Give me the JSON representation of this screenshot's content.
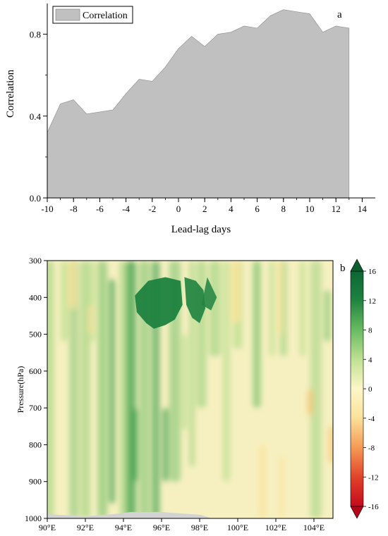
{
  "chart_data": [
    {
      "type": "area",
      "panel_label": "a",
      "xlabel": "Lead-lag days",
      "ylabel": "Correlation",
      "legend": {
        "entries": [
          "Correlation"
        ],
        "placement": "top-left",
        "color": "#c0c0c0"
      },
      "xlim": [
        -10,
        15
      ],
      "ylim": [
        0,
        0.95
      ],
      "x_ticks": [
        -10,
        -8,
        -6,
        -4,
        -2,
        0,
        2,
        4,
        6,
        8,
        10,
        12,
        14
      ],
      "x_tick_labels": [
        "-10",
        "-8",
        "-6",
        "-4",
        "-2",
        "0",
        "2",
        "4",
        "6",
        "8",
        "10",
        "12",
        "14"
      ],
      "y_ticks": [
        0.0,
        0.4,
        0.8
      ],
      "y_tick_labels": [
        "0.0",
        "0.4",
        "0.8"
      ],
      "grid": false,
      "fill_color": "#c0c0c0",
      "series": [
        {
          "name": "Correlation",
          "x": [
            -10,
            -9,
            -8,
            -7,
            -6,
            -5,
            -4,
            -3,
            -2,
            -1,
            0,
            1,
            2,
            3,
            4,
            5,
            6,
            7,
            8,
            9,
            10,
            11,
            12,
            13
          ],
          "values": [
            0.32,
            0.46,
            0.48,
            0.41,
            0.42,
            0.43,
            0.51,
            0.58,
            0.57,
            0.64,
            0.73,
            0.79,
            0.74,
            0.8,
            0.81,
            0.84,
            0.83,
            0.89,
            0.92,
            0.91,
            0.9,
            0.81,
            0.84,
            0.83
          ]
        }
      ]
    },
    {
      "type": "heatmap",
      "panel_label": "b",
      "xlabel": "",
      "ylabel": "Pressure(hPa)",
      "xlim": [
        90,
        105
      ],
      "ylim": [
        1000,
        300
      ],
      "x_tick_labels": [
        "90°E",
        "92°E",
        "94°E",
        "96°E",
        "98°E",
        "100°E",
        "102°E",
        "104°E"
      ],
      "x_ticks": [
        90,
        92,
        94,
        96,
        98,
        100,
        102,
        104
      ],
      "y_ticks": [
        300,
        400,
        500,
        600,
        700,
        800,
        900,
        1000
      ],
      "y_tick_labels": [
        "300",
        "400",
        "500",
        "600",
        "700",
        "800",
        "900",
        "1000"
      ],
      "colorbar": {
        "ticks": [
          16,
          12,
          8,
          4,
          0,
          -4,
          -8,
          -12,
          -16
        ],
        "tick_labels": [
          "16",
          "12",
          "8",
          "4",
          "0",
          "-4",
          "-8",
          "-12",
          "-16"
        ],
        "range": [
          -16,
          16
        ],
        "extend": "both",
        "colors": [
          "#c40a1c",
          "#e0402a",
          "#f0703c",
          "#f59a55",
          "#f8c06f",
          "#fbe39b",
          "#fdf6c8",
          "#e7f1b2",
          "#c2e294",
          "#97d079",
          "#69bb61",
          "#3e9f4e",
          "#1e823f",
          "#0d6633"
        ]
      },
      "terrain_color": "#d3d3d3"
    }
  ]
}
